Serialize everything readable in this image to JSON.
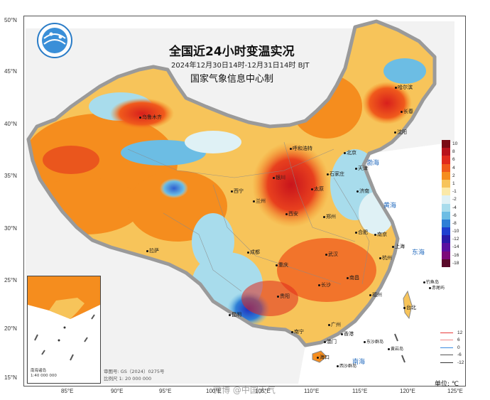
{
  "title": "全国近24小时变温实况",
  "subtitle": "2024年12月30日14时-12月31日14时 BJT",
  "organization": "国家气象信息中心制",
  "unit_label": "单位: ℃",
  "approval": {
    "line1": "审图号: GS（2024）0275号",
    "line2": "比例尺 1: 20 000 000"
  },
  "inset": {
    "caption": "南海诸岛",
    "scale": "1:40 000 000"
  },
  "watermark": "微博 @中国天气",
  "latitude_labels": [
    "50°N",
    "45°N",
    "40°N",
    "35°N",
    "30°N",
    "25°N",
    "20°N",
    "15°N"
  ],
  "longitude_labels": [
    "85°E",
    "90°E",
    "95°E",
    "100°E",
    "105°E",
    "110°E",
    "115°E",
    "120°E",
    "125°E"
  ],
  "legend": {
    "labels": [
      "10",
      "8",
      "6",
      "4",
      "2",
      "1",
      "-1",
      "-2",
      "-4",
      "-6",
      "-8",
      "-10",
      "-12",
      "-14",
      "-16",
      "-18"
    ],
    "colors": [
      "#7a0a14",
      "#b8121c",
      "#e02a1e",
      "#f05a1c",
      "#f58d1e",
      "#f7c45a",
      "#fbe9a8",
      "#dff1f5",
      "#a8dcec",
      "#6cbde4",
      "#2e7fd6",
      "#1f3fd0",
      "#2a1aa8",
      "#5a10a0",
      "#7c0a7a",
      "#5a0a2a"
    ]
  },
  "isolines": [
    {
      "label": "12",
      "color": "#e83a3a"
    },
    {
      "label": "6",
      "color": "#f08a8a"
    },
    {
      "label": "0",
      "color": "#3a8ce0"
    },
    {
      "label": "-6",
      "color": "#555555"
    },
    {
      "label": "-12",
      "color": "#333333"
    }
  ],
  "cities": [
    "哈尔滨",
    "长春",
    "沈阳",
    "乌鲁木齐",
    "呼和浩特",
    "北京",
    "天津",
    "石家庄",
    "太原",
    "济南",
    "银川",
    "西宁",
    "兰州",
    "西安",
    "郑州",
    "合肥",
    "南京",
    "上海",
    "武汉",
    "杭州",
    "成都",
    "重庆",
    "长沙",
    "南昌",
    "福州",
    "台北",
    "贵阳",
    "昆明",
    "南宁",
    "广州",
    "香港",
    "澳门",
    "海口",
    "拉萨"
  ],
  "seas": [
    "渤海",
    "黄海",
    "东海",
    "南海"
  ],
  "islands": [
    "钓鱼岛",
    "赤尾屿",
    "东沙群岛",
    "西沙群岛",
    "黄岩岛"
  ]
}
